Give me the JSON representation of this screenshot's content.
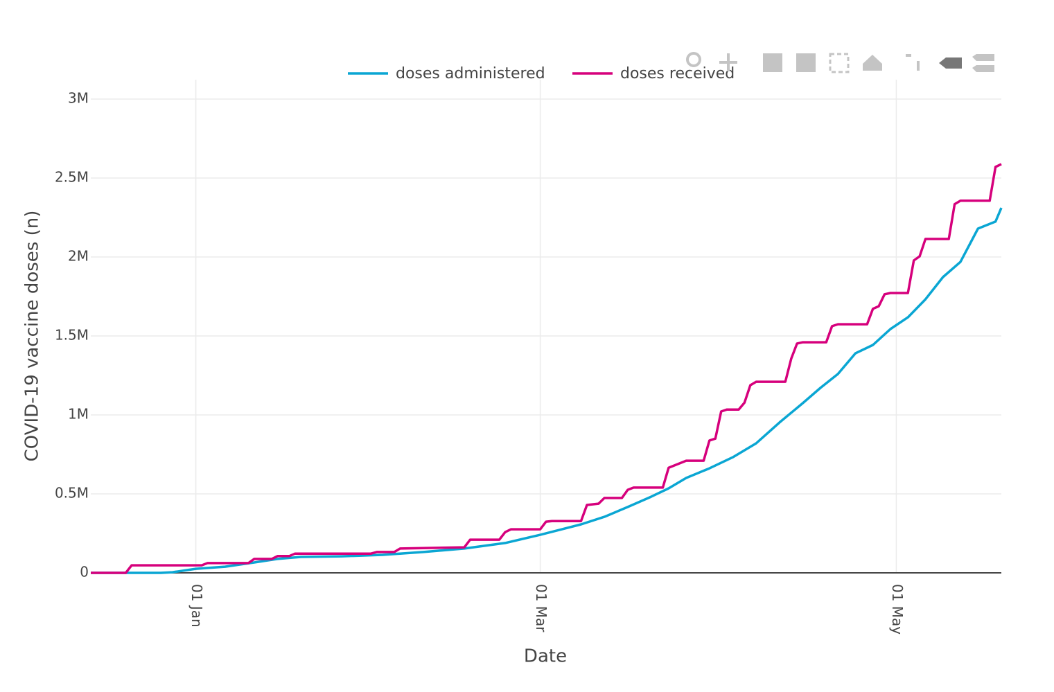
{
  "chart_data": {
    "type": "line",
    "xlabel": "Date",
    "ylabel": "COVID-19 vaccine doses (n)",
    "xlim": [
      "14 Dec",
      "19 May"
    ],
    "xticks": [
      "01 Jan",
      "01 Mar",
      "01 May"
    ],
    "ylim": [
      0,
      3000000
    ],
    "yticks": [
      0,
      {
        "value": 500000,
        "label": "0.5M"
      },
      {
        "value": 1000000,
        "label": "1M"
      },
      {
        "value": 1500000,
        "label": "1.5M"
      },
      {
        "value": 2000000,
        "label": "2M"
      },
      {
        "value": 2500000,
        "label": "2.5M"
      },
      {
        "value": 3000000,
        "label": "3M"
      }
    ],
    "grid": true,
    "legend": "top",
    "series": [
      {
        "name": "doses administered",
        "color": "#0aa6d3",
        "x": [
          "14 Dec",
          "26 Dec",
          "28 Dec",
          "01 Jan",
          "06 Jan",
          "11 Jan",
          "15 Jan",
          "19 Jan",
          "26 Jan",
          "02 Feb",
          "09 Feb",
          "16 Feb",
          "23 Feb",
          "01 Mar",
          "08 Mar",
          "12 Mar",
          "16 Mar",
          "20 Mar",
          "23 Mar",
          "26 Mar",
          "30 Mar",
          "03 Apr",
          "07 Apr",
          "11 Apr",
          "15 Apr",
          "18 Apr",
          "21 Apr",
          "24 Apr",
          "27 Apr",
          "30 Apr",
          "03 May",
          "06 May",
          "09 May",
          "12 May",
          "15 May",
          "18 May",
          "19 May"
        ],
        "values": [
          0,
          0,
          4000,
          26000,
          39000,
          66000,
          88000,
          101000,
          105000,
          114000,
          132000,
          154000,
          189000,
          241000,
          307000,
          355000,
          417000,
          482000,
          535000,
          601000,
          662000,
          732000,
          820000,
          952000,
          1075000,
          1171000,
          1259000,
          1390000,
          1443000,
          1544000,
          1618000,
          1732000,
          1873000,
          1969000,
          2180000,
          2224000,
          2311000
        ]
      },
      {
        "name": "doses received",
        "color": "#d6007c",
        "x": [
          "14 Dec",
          "20 Dec",
          "21 Dec",
          "02 Jan",
          "03 Jan",
          "10 Jan",
          "11 Jan",
          "14 Jan",
          "15 Jan",
          "17 Jan",
          "18 Jan",
          "31 Jan",
          "01 Feb",
          "04 Feb",
          "05 Feb",
          "16 Feb",
          "17 Feb",
          "22 Feb",
          "23 Feb",
          "24 Feb",
          "01 Mar",
          "02 Mar",
          "03 Mar",
          "08 Mar",
          "09 Mar",
          "11 Mar",
          "12 Mar",
          "15 Mar",
          "16 Mar",
          "17 Mar",
          "22 Mar",
          "23 Mar",
          "26 Mar",
          "29 Mar",
          "30 Mar",
          "31 Mar",
          "01 Apr",
          "02 Apr",
          "04 Apr",
          "05 Apr",
          "06 Apr",
          "07 Apr",
          "12 Apr",
          "13 Apr",
          "14 Apr",
          "15 Apr",
          "19 Apr",
          "20 Apr",
          "21 Apr",
          "26 Apr",
          "27 Apr",
          "28 Apr",
          "29 Apr",
          "30 Apr",
          "03 May",
          "04 May",
          "05 May",
          "06 May",
          "10 May",
          "11 May",
          "12 May",
          "17 May",
          "18 May",
          "19 May"
        ],
        "values": [
          0,
          0,
          48000,
          48000,
          62000,
          62000,
          88000,
          88000,
          106000,
          106000,
          122000,
          122000,
          132000,
          132000,
          154000,
          162000,
          210000,
          210000,
          258000,
          276000,
          276000,
          324000,
          328000,
          328000,
          430000,
          438000,
          474000,
          474000,
          526000,
          540000,
          540000,
          666000,
          710000,
          710000,
          838000,
          850000,
          1022000,
          1034000,
          1034000,
          1078000,
          1188000,
          1210000,
          1210000,
          1356000,
          1452000,
          1460000,
          1460000,
          1562000,
          1574000,
          1574000,
          1672000,
          1688000,
          1764000,
          1772000,
          1772000,
          1978000,
          2004000,
          2114000,
          2114000,
          2334000,
          2356000,
          2356000,
          2570000,
          2588000
        ]
      }
    ]
  }
}
